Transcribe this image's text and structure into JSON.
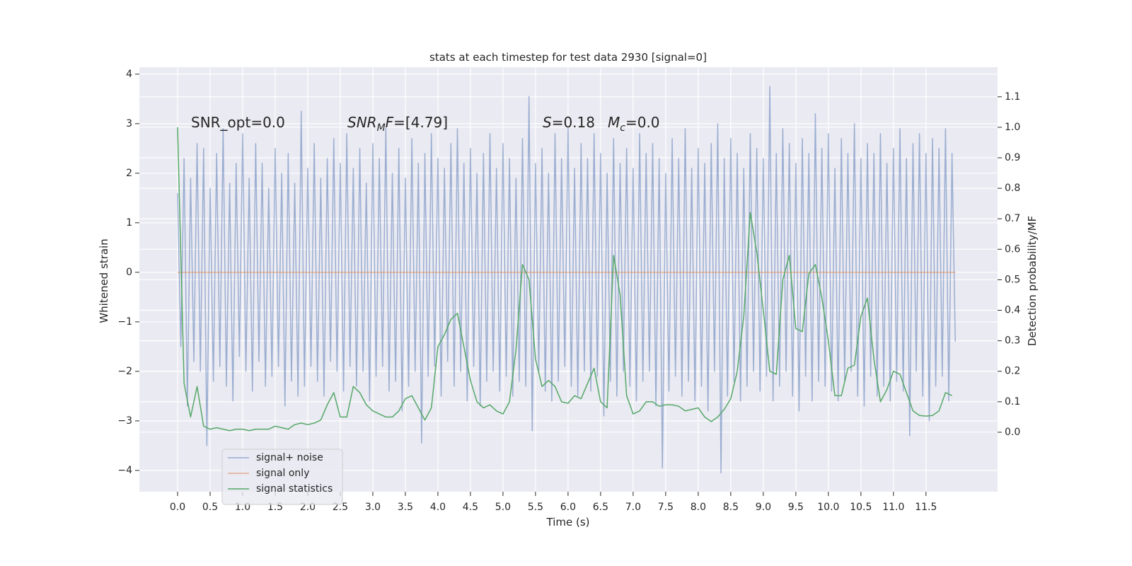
{
  "chart_data": {
    "type": "line",
    "title": "stats at each timestep for test data 2930 [signal=0]",
    "xlabel": "Time (s)",
    "ylabel": "Whitened strain",
    "y2label": "Detection probability/MF",
    "annotations": [
      [
        {
          "text": "SNR_opt=0.0",
          "italic": false,
          "sub": false
        }
      ],
      [
        {
          "text": "SNR",
          "italic": true,
          "sub": false
        },
        {
          "text": "M",
          "italic": true,
          "sub": true
        },
        {
          "text": "F",
          "italic": true,
          "sub": false
        },
        {
          "text": "=[4.79]",
          "italic": false,
          "sub": false
        }
      ],
      [
        {
          "text": "S",
          "italic": true,
          "sub": false
        },
        {
          "text": "=0.18",
          "italic": false,
          "sub": false
        }
      ],
      [
        {
          "text": "M",
          "italic": true,
          "sub": false
        },
        {
          "text": "c",
          "italic": true,
          "sub": true
        },
        {
          "text": "=0.0",
          "italic": false,
          "sub": false
        }
      ]
    ],
    "xlim": [
      -0.587,
      12.6
    ],
    "ylim": [
      -4.43,
      4.14
    ],
    "y2lim": [
      -0.195,
      1.197
    ],
    "xticks": [
      {
        "value": 0,
        "label": "0.0"
      },
      0.5,
      {
        "value": 1,
        "label": "1.0"
      },
      1.5,
      {
        "value": 2,
        "label": "2.0"
      },
      2.5,
      {
        "value": 3,
        "label": "3.0"
      },
      3.5,
      {
        "value": 4,
        "label": "4.0"
      },
      4.5,
      {
        "value": 5,
        "label": "5.0"
      },
      5.5,
      {
        "value": 6,
        "label": "6.0"
      },
      6.5,
      {
        "value": 7,
        "label": "7.0"
      },
      7.5,
      {
        "value": 8,
        "label": "8.0"
      },
      8.5,
      {
        "value": 9,
        "label": "9.0"
      },
      9.5,
      {
        "value": 10,
        "label": "10.0"
      },
      10.5,
      {
        "value": 11,
        "label": "11.0"
      },
      11.5
    ],
    "yticks": [
      {
        "value": -4,
        "label": "−4"
      },
      {
        "value": -3,
        "label": "−3"
      },
      {
        "value": -2,
        "label": "−2"
      },
      {
        "value": -1,
        "label": "−1"
      },
      0,
      1,
      2,
      3,
      4
    ],
    "y2ticks": [
      {
        "value": 0,
        "label": "0.0"
      },
      0.1,
      0.2,
      0.3,
      0.4,
      0.5,
      0.6,
      0.7,
      0.8,
      0.9,
      {
        "value": 1,
        "label": "1.0"
      },
      1.1
    ],
    "grid": true,
    "legend": "lower left",
    "series": [
      {
        "name": "signal+ noise",
        "color": "#4c72b0",
        "alpha": 0.5,
        "x": [
          0,
          0.05,
          0.1,
          0.15,
          0.2,
          0.25,
          0.3,
          0.35,
          0.4,
          0.45,
          0.5,
          0.55,
          0.6,
          0.65,
          0.7,
          0.75,
          0.8,
          0.85,
          0.9,
          0.95,
          1,
          1.05,
          1.1,
          1.15,
          1.2,
          1.25,
          1.3,
          1.35,
          1.4,
          1.45,
          1.5,
          1.55,
          1.6,
          1.65,
          1.7,
          1.75,
          1.8,
          1.85,
          1.9,
          1.95,
          2,
          2.05,
          2.1,
          2.15,
          2.2,
          2.25,
          2.3,
          2.35,
          2.4,
          2.45,
          2.5,
          2.55,
          2.6,
          2.65,
          2.7,
          2.75,
          2.8,
          2.85,
          2.9,
          2.95,
          3,
          3.05,
          3.1,
          3.15,
          3.2,
          3.25,
          3.3,
          3.35,
          3.4,
          3.45,
          3.5,
          3.55,
          3.6,
          3.65,
          3.7,
          3.75,
          3.8,
          3.85,
          3.9,
          3.95,
          4,
          4.05,
          4.1,
          4.15,
          4.2,
          4.25,
          4.3,
          4.35,
          4.4,
          4.45,
          4.5,
          4.55,
          4.6,
          4.65,
          4.7,
          4.75,
          4.8,
          4.85,
          4.9,
          4.95,
          5,
          5.05,
          5.1,
          5.15,
          5.2,
          5.25,
          5.3,
          5.35,
          5.4,
          5.45,
          5.5,
          5.55,
          5.6,
          5.65,
          5.7,
          5.75,
          5.8,
          5.85,
          5.9,
          5.95,
          6,
          6.05,
          6.1,
          6.15,
          6.2,
          6.25,
          6.3,
          6.35,
          6.4,
          6.45,
          6.5,
          6.55,
          6.6,
          6.65,
          6.7,
          6.75,
          6.8,
          6.85,
          6.9,
          6.95,
          7,
          7.05,
          7.1,
          7.15,
          7.2,
          7.25,
          7.3,
          7.35,
          7.4,
          7.45,
          7.5,
          7.55,
          7.6,
          7.65,
          7.7,
          7.75,
          7.8,
          7.85,
          7.9,
          7.95,
          8,
          8.05,
          8.1,
          8.15,
          8.2,
          8.25,
          8.3,
          8.35,
          8.4,
          8.45,
          8.5,
          8.55,
          8.6,
          8.65,
          8.7,
          8.75,
          8.8,
          8.85,
          8.9,
          8.95,
          9,
          9.05,
          9.1,
          9.15,
          9.2,
          9.25,
          9.3,
          9.35,
          9.4,
          9.45,
          9.5,
          9.55,
          9.6,
          9.65,
          9.7,
          9.75,
          9.8,
          9.85,
          9.9,
          9.95,
          10,
          10.05,
          10.1,
          10.15,
          10.2,
          10.25,
          10.3,
          10.35,
          10.4,
          10.45,
          10.5,
          10.55,
          10.6,
          10.65,
          10.7,
          10.75,
          10.8,
          10.85,
          10.9,
          10.95,
          11,
          11.05,
          11.1,
          11.15,
          11.2,
          11.25,
          11.3,
          11.35,
          11.4,
          11.45,
          11.5,
          11.55,
          11.6,
          11.65,
          11.7,
          11.75,
          11.8,
          11.85,
          11.9,
          11.95
        ],
        "values": [
          1.6,
          -1.5,
          2.3,
          -2.7,
          1.9,
          -1.8,
          2.6,
          -2.0,
          2.5,
          -3.5,
          1.7,
          -2.2,
          2.4,
          -1.9,
          2.9,
          -2.3,
          1.8,
          -2.6,
          2.2,
          -1.7,
          2.8,
          -2.0,
          1.9,
          -2.4,
          2.6,
          -1.8,
          2.2,
          -2.3,
          1.7,
          -2.1,
          2.5,
          -1.9,
          2.0,
          -2.7,
          2.4,
          -2.2,
          1.8,
          -2.5,
          3.25,
          -2.3,
          2.1,
          -1.9,
          2.6,
          -2.2,
          1.9,
          -2.5,
          2.3,
          -1.8,
          2.7,
          -2.0,
          2.2,
          -2.4,
          2.8,
          -1.9,
          2.1,
          -2.3,
          2.5,
          -2.0,
          1.8,
          -2.6,
          2.6,
          -2.1,
          2.3,
          -1.9,
          2.9,
          -2.4,
          2.0,
          -2.2,
          2.5,
          -2.8,
          1.9,
          -2.3,
          2.7,
          -2.0,
          2.2,
          -3.45,
          2.4,
          -2.1,
          2.8,
          -1.9,
          2.3,
          -2.5,
          2.1,
          -1.8,
          2.6,
          -2.3,
          2.9,
          -2.0,
          2.2,
          -2.6,
          2.5,
          -1.9,
          2.0,
          -2.7,
          2.4,
          -2.2,
          2.8,
          -2.0,
          2.1,
          -2.4,
          2.6,
          -2.1,
          2.3,
          -2.5,
          1.9,
          -2.2,
          2.7,
          -2.3,
          3.55,
          -3.2,
          2.2,
          -2.0,
          2.5,
          -2.4,
          2.0,
          -2.6,
          2.8,
          -2.2,
          2.3,
          -1.9,
          2.9,
          -2.3,
          2.1,
          -2.5,
          2.6,
          -2.0,
          2.3,
          -2.4,
          2.8,
          -2.1,
          2.4,
          -2.9,
          2.0,
          -2.2,
          2.7,
          -2.5,
          2.2,
          -2.0,
          2.5,
          -2.3,
          2.1,
          -2.6,
          2.8,
          -2.2,
          2.4,
          -2.0,
          2.6,
          -2.7,
          2.3,
          -3.95,
          2.0,
          -2.4,
          2.7,
          -2.1,
          2.3,
          -2.5,
          2.9,
          -2.2,
          2.1,
          -2.6,
          2.5,
          -2.3,
          2.2,
          -2.8,
          2.6,
          -2.0,
          3.0,
          -4.05,
          2.3,
          -2.5,
          2.7,
          -2.2,
          2.4,
          -2.6,
          2.1,
          -2.3,
          2.8,
          -2.0,
          2.5,
          -2.4,
          2.3,
          -2.1,
          3.75,
          -2.6,
          2.4,
          -2.3,
          2.9,
          -2.0,
          2.6,
          -2.5,
          2.2,
          -2.8,
          2.7,
          -2.1,
          2.4,
          -2.6,
          3.2,
          -2.2,
          2.5,
          -2.3,
          2.8,
          -2.4,
          2.1,
          -2.6,
          2.7,
          -2.2,
          2.4,
          -2.0,
          3.0,
          -2.5,
          2.3,
          -2.7,
          2.6,
          -2.1,
          2.4,
          -2.5,
          2.8,
          -2.3,
          2.2,
          -2.6,
          2.5,
          -2.2,
          2.9,
          -2.4,
          2.3,
          -3.3,
          2.6,
          -2.0,
          2.8,
          -2.5,
          2.4,
          -3.0,
          2.7,
          -2.3,
          2.5,
          -2.1,
          2.9,
          -2.6,
          2.4,
          -1.4
        ]
      },
      {
        "name": "signal only",
        "color": "#dd8452",
        "alpha": 0.6,
        "x": [
          0,
          11.95
        ],
        "values": [
          0,
          0
        ]
      },
      {
        "name": "signal statistics",
        "color": "#55a868",
        "alpha": 1,
        "axis": "y2",
        "x": [
          0,
          0.1,
          0.2,
          0.3,
          0.4,
          0.5,
          0.6,
          0.7,
          0.8,
          0.9,
          1,
          1.1,
          1.2,
          1.3,
          1.4,
          1.5,
          1.6,
          1.7,
          1.8,
          1.9,
          2,
          2.1,
          2.2,
          2.3,
          2.4,
          2.5,
          2.6,
          2.7,
          2.8,
          2.9,
          3,
          3.1,
          3.2,
          3.3,
          3.4,
          3.5,
          3.6,
          3.7,
          3.8,
          3.9,
          4,
          4.1,
          4.2,
          4.3,
          4.4,
          4.5,
          4.6,
          4.7,
          4.8,
          4.9,
          5,
          5.1,
          5.2,
          5.3,
          5.4,
          5.5,
          5.6,
          5.7,
          5.8,
          5.9,
          6,
          6.1,
          6.2,
          6.3,
          6.4,
          6.5,
          6.6,
          6.7,
          6.8,
          6.9,
          7,
          7.1,
          7.2,
          7.3,
          7.4,
          7.5,
          7.6,
          7.7,
          7.8,
          7.9,
          8,
          8.1,
          8.2,
          8.3,
          8.4,
          8.5,
          8.6,
          8.7,
          8.8,
          8.9,
          9,
          9.1,
          9.2,
          9.3,
          9.4,
          9.5,
          9.6,
          9.7,
          9.8,
          9.9,
          10,
          10.1,
          10.2,
          10.3,
          10.4,
          10.5,
          10.6,
          10.7,
          10.8,
          10.9,
          11,
          11.1,
          11.2,
          11.3,
          11.4,
          11.5,
          11.6,
          11.7,
          11.8,
          11.9
        ],
        "values": [
          1.0,
          0.16,
          0.05,
          0.15,
          0.02,
          0.01,
          0.015,
          0.01,
          0.005,
          0.01,
          0.01,
          0.005,
          0.01,
          0.01,
          0.01,
          0.02,
          0.015,
          0.01,
          0.025,
          0.03,
          0.025,
          0.03,
          0.04,
          0.09,
          0.13,
          0.05,
          0.05,
          0.15,
          0.13,
          0.09,
          0.07,
          0.06,
          0.05,
          0.05,
          0.07,
          0.11,
          0.12,
          0.08,
          0.04,
          0.08,
          0.28,
          0.32,
          0.37,
          0.39,
          0.28,
          0.17,
          0.1,
          0.08,
          0.09,
          0.07,
          0.06,
          0.1,
          0.27,
          0.55,
          0.5,
          0.24,
          0.15,
          0.17,
          0.15,
          0.1,
          0.095,
          0.12,
          0.11,
          0.16,
          0.21,
          0.1,
          0.08,
          0.58,
          0.45,
          0.12,
          0.06,
          0.07,
          0.1,
          0.1,
          0.085,
          0.09,
          0.09,
          0.085,
          0.07,
          0.075,
          0.08,
          0.05,
          0.035,
          0.05,
          0.075,
          0.11,
          0.2,
          0.38,
          0.72,
          0.59,
          0.4,
          0.2,
          0.19,
          0.5,
          0.58,
          0.34,
          0.33,
          0.52,
          0.55,
          0.44,
          0.3,
          0.12,
          0.12,
          0.21,
          0.22,
          0.38,
          0.44,
          0.24,
          0.1,
          0.14,
          0.2,
          0.19,
          0.13,
          0.07,
          0.055,
          0.053,
          0.055,
          0.07,
          0.13,
          0.12
        ]
      }
    ]
  }
}
